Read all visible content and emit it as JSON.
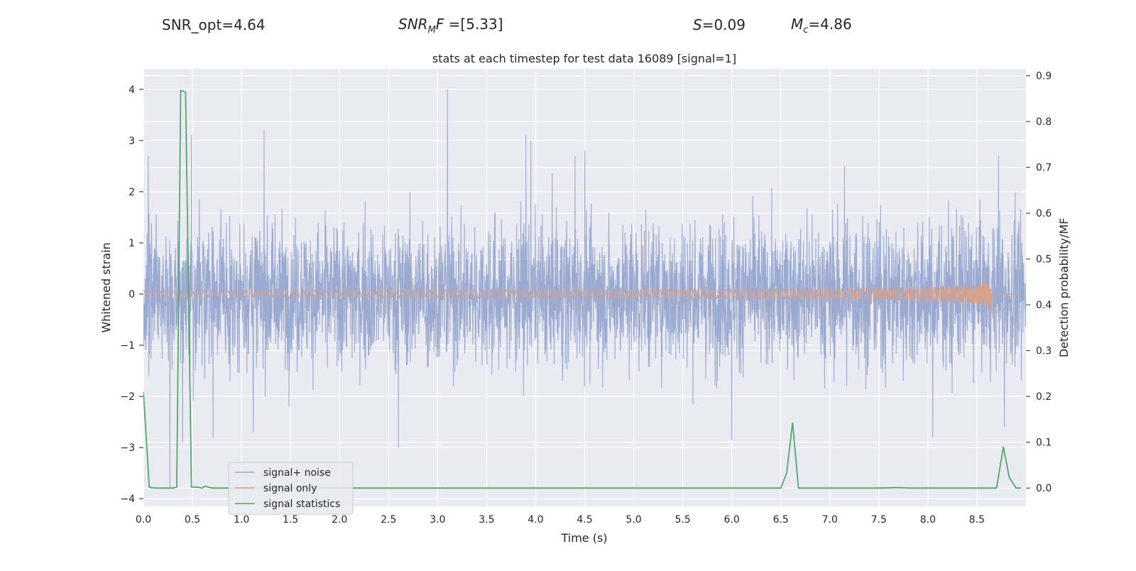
{
  "header": {
    "snr_opt": "SNR_opt=4.64",
    "snr_mf_base": "SNR",
    "snr_mf_sub": "M",
    "snr_mf_rest": "F=[5.33]",
    "s_label": "S",
    "s_rest": "=0.09",
    "mc_base": "M",
    "mc_sub": "c",
    "mc_rest": "=4.86"
  },
  "colors": {
    "plot_bg": "#EAEAF2",
    "grid": "#FFFFFF",
    "noise": "#9AAAD0",
    "signal": "#D9A08A",
    "stats": "#55A868",
    "legend_edge": "#CCCCCC"
  },
  "chart_data": {
    "type": "line",
    "title": "stats at each timestep for test data 16089 [signal=1]",
    "xlabel": "Time (s)",
    "ylabel": "Whitened strain",
    "ylabel_right": "Detection probability/MF",
    "xlim": [
      0.0,
      9.0
    ],
    "ylim": [
      -4.15,
      4.4
    ],
    "ylim_right": [
      -0.04,
      0.915
    ],
    "x_ticks": [
      "0.0",
      "0.5",
      "1.0",
      "1.5",
      "2.0",
      "2.5",
      "3.0",
      "3.5",
      "4.0",
      "4.5",
      "5.0",
      "5.5",
      "6.0",
      "6.5",
      "7.0",
      "7.5",
      "8.0",
      "8.5"
    ],
    "y_ticks": [
      "4",
      "3",
      "2",
      "1",
      "0",
      "−1",
      "−2",
      "−3",
      "−4"
    ],
    "y_ticks_right": [
      "0.9",
      "0.8",
      "0.7",
      "0.6",
      "0.5",
      "0.4",
      "0.3",
      "0.2",
      "0.1",
      "0.0"
    ],
    "legend": [
      "signal+ noise",
      "signal only",
      "signal statistics"
    ],
    "legend_loc": "lower left",
    "series": [
      {
        "name": "signal+ noise",
        "description_values": "dense whitened noise, typical amplitude within ±2, spikes up to 4.0",
        "peaks": [
          {
            "x": 0.05,
            "y": 2.7
          },
          {
            "x": 0.27,
            "y": -3.8
          },
          {
            "x": 0.4,
            "y": -2.9
          },
          {
            "x": 0.49,
            "y": 3.1
          },
          {
            "x": 0.71,
            "y": -2.8
          },
          {
            "x": 1.23,
            "y": 3.2
          },
          {
            "x": 1.12,
            "y": -2.7
          },
          {
            "x": 2.6,
            "y": -3.0
          },
          {
            "x": 3.1,
            "y": 4.0
          },
          {
            "x": 3.9,
            "y": 3.1
          },
          {
            "x": 3.95,
            "y": 3.0
          },
          {
            "x": 4.5,
            "y": 2.8
          },
          {
            "x": 4.4,
            "y": 2.7
          },
          {
            "x": 6.0,
            "y": -2.85
          },
          {
            "x": 7.15,
            "y": 2.5
          },
          {
            "x": 8.05,
            "y": -2.8
          },
          {
            "x": 8.72,
            "y": 2.7
          },
          {
            "x": 8.78,
            "y": -2.6
          }
        ]
      },
      {
        "name": "signal only",
        "chirp": {
          "start": 0.0,
          "merger": 8.65,
          "peak_amplitude": 0.38
        }
      },
      {
        "name": "signal statistics",
        "x": [
          0.0,
          0.06,
          0.12,
          0.2,
          0.3,
          0.34,
          0.38,
          0.43,
          0.49,
          0.55,
          0.6,
          0.63,
          0.7,
          0.8,
          1.0,
          2.0,
          3.0,
          4.0,
          5.0,
          6.0,
          6.5,
          6.56,
          6.62,
          6.68,
          6.8,
          7.5,
          7.7,
          7.8,
          8.0,
          8.25,
          8.4,
          8.7,
          8.77,
          8.83,
          8.9,
          8.95
        ],
        "y": [
          0.21,
          0.002,
          0.0,
          0.0,
          0.0,
          0.002,
          0.868,
          0.864,
          0.002,
          0.002,
          0.0,
          0.004,
          0.0,
          0.0,
          0.0,
          0.0,
          0.0,
          0.0,
          0.0,
          0.0,
          0.0,
          0.033,
          0.143,
          0.0,
          0.0,
          0.0,
          0.001,
          0.0,
          0.0,
          0.0,
          0.0,
          0.0,
          0.09,
          0.023,
          0.0,
          0.0
        ]
      }
    ]
  }
}
